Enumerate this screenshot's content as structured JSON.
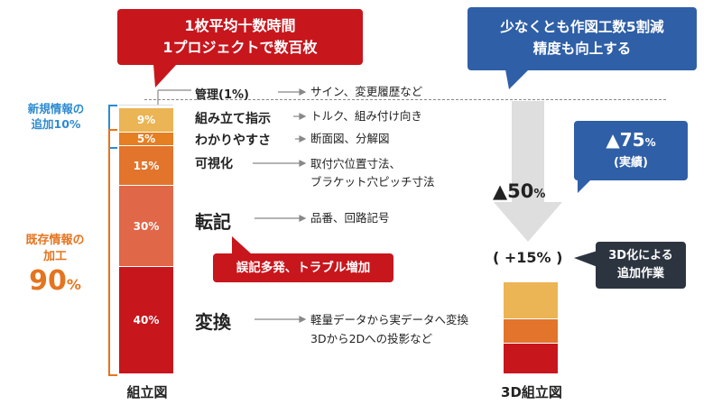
{
  "callouts": {
    "left_line1": "1枚平均十数時間",
    "left_line2": "1プロジェクトで数百枚",
    "right_line1": "少なくとも作図工数5割減",
    "right_line2": "精度も向上する",
    "actual_pct": "▲75",
    "actual_unit": "%",
    "actual_note": "(実績)",
    "errors": "誤記多発、トラブル増加",
    "added_work_line1": "3D化による",
    "added_work_line2": "追加作業"
  },
  "left_side": {
    "new_info_line1": "新規情報の",
    "new_info_line2": "追加10%",
    "existing_line1": "既存情報の",
    "existing_line2": "加工",
    "existing_pct": "90",
    "existing_pct_unit": "%"
  },
  "reduction": {
    "value": "▲50",
    "unit": "%"
  },
  "plus_label": "( +15% )",
  "colors": {
    "red": "#c8161d",
    "blue": "#2f5fa7",
    "navy": "#2c3440",
    "gold": "#ebb454",
    "orange": "#e67e22",
    "salmon": "#e06748",
    "dark_orange": "#e2742c",
    "arrow_gray": "#dedede",
    "new_info_blue": "#2d8ad0",
    "existing_orange": "#e5741f"
  },
  "chart_data": [
    {
      "type": "bar",
      "xlabel": "組立図",
      "segments": [
        {
          "label": "40%",
          "value": 40,
          "color": "#c8161d",
          "task": "変換",
          "detail": [
            "軽量データから実データへ変換",
            "3Dから2Dへの投影など"
          ]
        },
        {
          "label": "30%",
          "value": 30,
          "color": "#e06748",
          "task": "転記",
          "detail": [
            "品番、回路記号"
          ]
        },
        {
          "label": "15%",
          "value": 15,
          "color": "#e2742c",
          "task": "可視化",
          "detail": [
            "取付穴位置寸法、",
            "ブラケット穴ピッチ寸法"
          ]
        },
        {
          "label": "5%",
          "value": 5,
          "color": "#e67e22",
          "task": "わかりやすさ",
          "detail": [
            "断面図、分解図"
          ]
        },
        {
          "label": "9%",
          "value": 9,
          "color": "#ebb454",
          "task": "組み立て指示",
          "detail": [
            "トルク、組み付け向き"
          ]
        },
        {
          "label": "",
          "value": 1,
          "color": "#ffffff",
          "task": "管理(1%)",
          "detail": [
            "サイン、変更履歴など"
          ]
        }
      ]
    },
    {
      "type": "bar",
      "xlabel": "3D組立図",
      "segments": [
        {
          "label": "",
          "value": 33,
          "color": "#c8161d"
        },
        {
          "label": "",
          "value": 27,
          "color": "#e2742c"
        },
        {
          "label": "",
          "value": 40,
          "color": "#ebb454"
        }
      ]
    }
  ]
}
